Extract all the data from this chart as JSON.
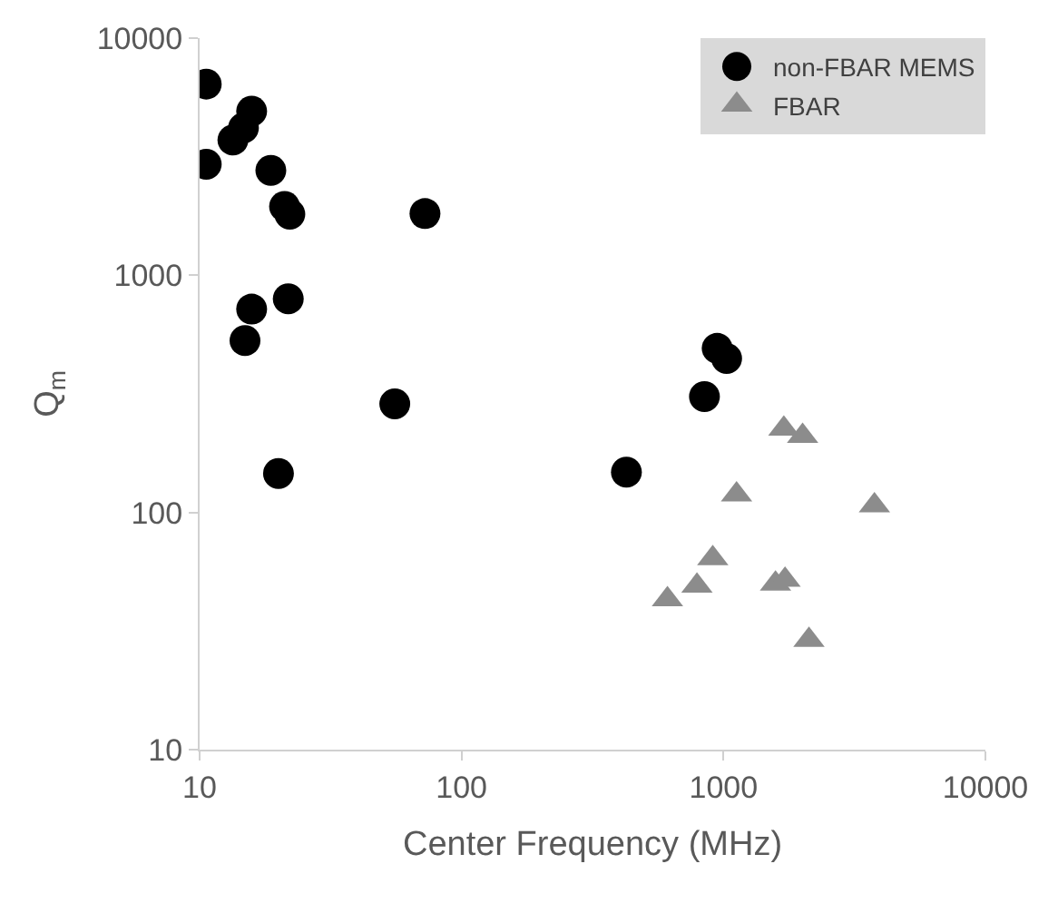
{
  "chart_data": {
    "type": "scatter",
    "xlabel": "Center Frequency (MHz)",
    "ylabel": "Q$_{m}$",
    "log": "xy",
    "xlim": [
      10,
      10000
    ],
    "ylim": [
      10,
      10000
    ],
    "xticks": [
      10,
      100,
      1000,
      10000
    ],
    "yticks": [
      10,
      100,
      1000,
      10000
    ],
    "legend": "top right",
    "series": [
      {
        "name": "non-FBAR MEMS",
        "color": "#000000",
        "marker": "circle",
        "x": [
          10.6,
          10.6,
          15.8,
          14.7,
          13.4,
          18.7,
          21.1,
          22.1,
          72.5,
          21.8,
          15.8,
          14.9,
          55.6,
          20,
          946,
          1028,
          846,
          426
        ],
        "values": [
          6400,
          2940,
          4920,
          4180,
          3720,
          2770,
          1950,
          1810,
          1820,
          796,
          720,
          531,
          287,
          146,
          492,
          446,
          308,
          148
        ]
      },
      {
        "name": "FBAR",
        "color": "#8c8c8c",
        "marker": "triangle",
        "x": [
          1700,
          2005,
          1122,
          3770,
          910,
          792,
          611,
          1580,
          1718,
          2120
        ],
        "values": [
          225,
          210,
          119,
          107,
          64,
          49,
          43,
          50,
          52,
          29
        ]
      }
    ]
  }
}
